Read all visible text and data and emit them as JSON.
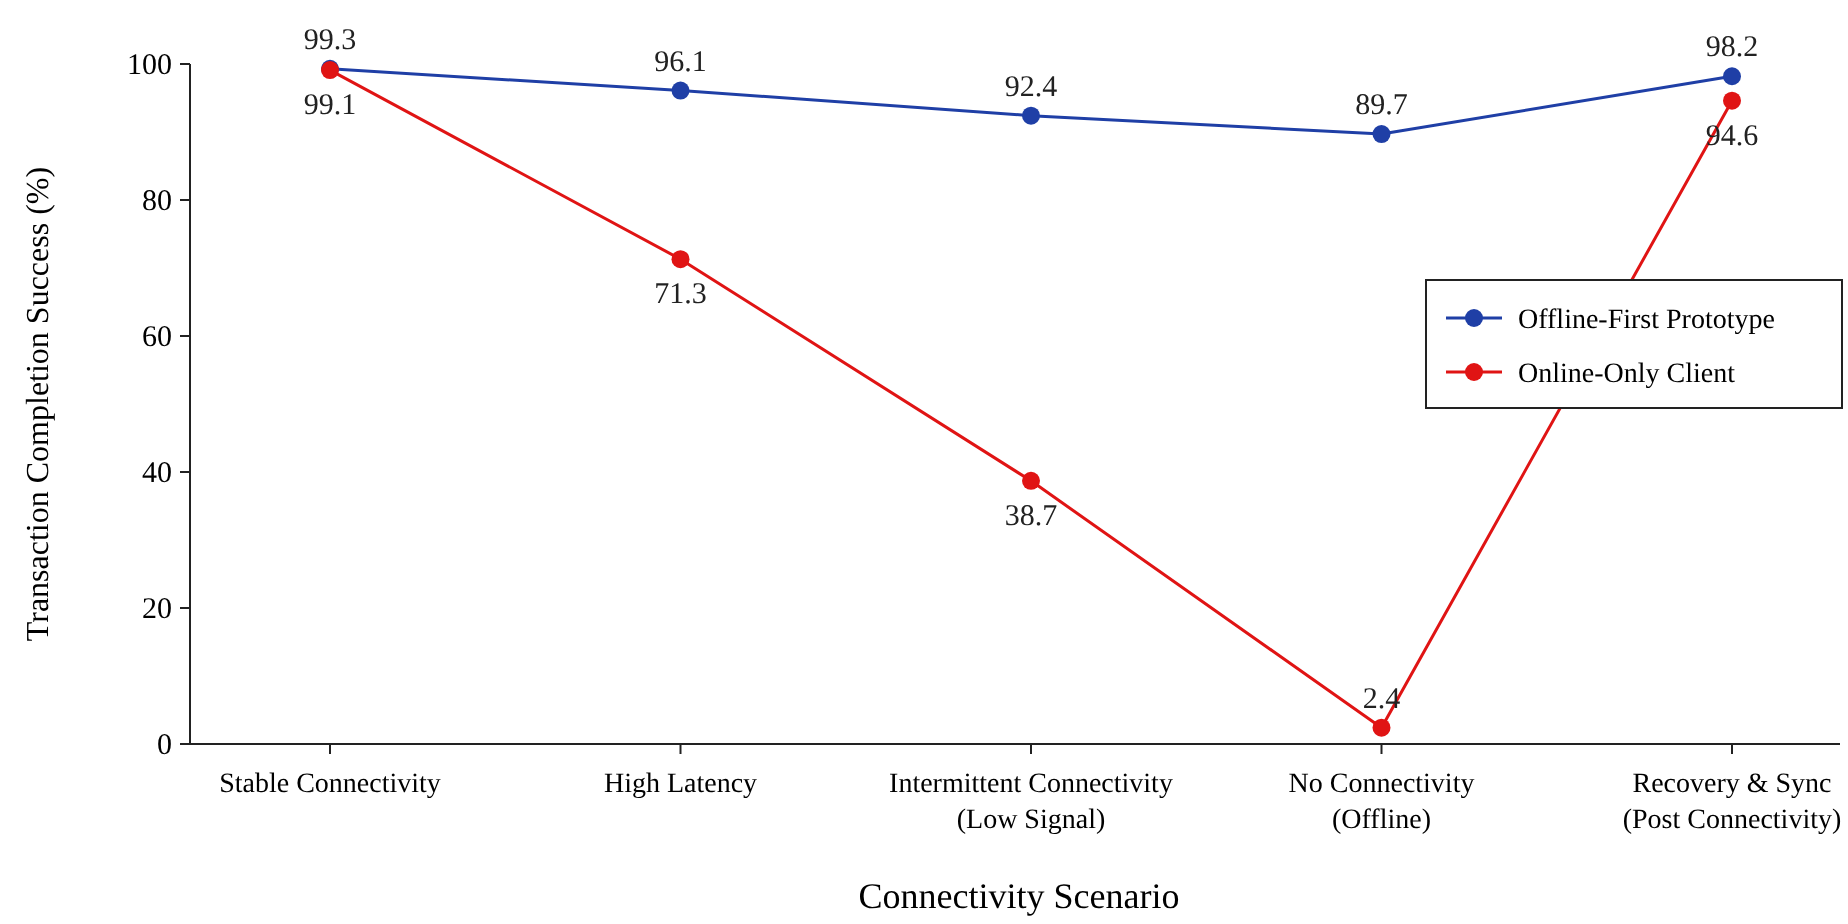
{
  "chart_data": {
    "type": "line",
    "xlabel": "Connectivity Scenario",
    "ylabel": "Transaction Completion Success (%)",
    "categories": [
      "Stable Connectivity",
      "High Latency",
      "Intermittent Connectivity\n(Low Signal)",
      "No Connectivity\n(Offline)",
      "Recovery & Sync\n(Post Connectivity)"
    ],
    "series": [
      {
        "name": "Offline-First Prototype",
        "color": "#1f3fa6",
        "values": [
          99.3,
          96.1,
          92.4,
          89.7,
          98.2
        ]
      },
      {
        "name": "Online-Only Client",
        "color": "#e01414",
        "values": [
          99.1,
          71.3,
          38.7,
          2.4,
          94.6
        ]
      }
    ],
    "ylim": [
      0,
      100
    ],
    "yticks": [
      0,
      20,
      40,
      60,
      80,
      100
    ],
    "grid": false,
    "legend": "right",
    "marker": "circle",
    "line_style": "solid",
    "data_labels": true
  }
}
